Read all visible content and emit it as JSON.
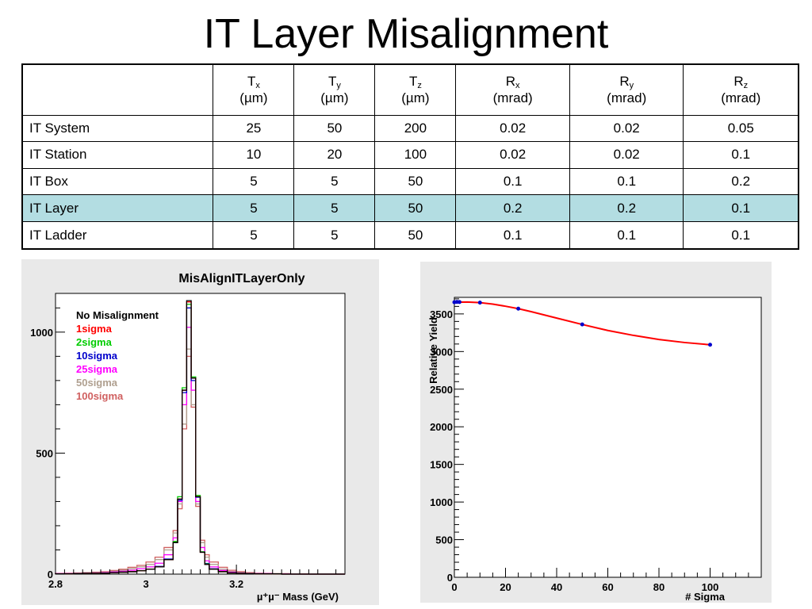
{
  "slide": {
    "title": "IT Layer Misalignment"
  },
  "table": {
    "headers": [
      {
        "sym": "T",
        "sub": "x",
        "unit": "(µm)"
      },
      {
        "sym": "T",
        "sub": "y",
        "unit": "(µm)"
      },
      {
        "sym": "T",
        "sub": "z",
        "unit": "(µm)"
      },
      {
        "sym": "R",
        "sub": "x",
        "unit": "(mrad)"
      },
      {
        "sym": "R",
        "sub": "y",
        "unit": "(mrad)"
      },
      {
        "sym": "R",
        "sub": "z",
        "unit": "(mrad)"
      }
    ],
    "rows": [
      {
        "label": "IT System",
        "values": [
          "25",
          "50",
          "200",
          "0.02",
          "0.02",
          "0.05"
        ]
      },
      {
        "label": "IT Station",
        "values": [
          "10",
          "20",
          "100",
          "0.02",
          "0.02",
          "0.1"
        ]
      },
      {
        "label": "IT Box",
        "values": [
          "5",
          "5",
          "50",
          "0.1",
          "0.1",
          "0.2"
        ]
      },
      {
        "label": "IT Layer",
        "values": [
          "5",
          "5",
          "50",
          "0.2",
          "0.2",
          "0.1"
        ]
      },
      {
        "label": "IT Ladder",
        "values": [
          "5",
          "5",
          "50",
          "0.1",
          "0.1",
          "0.1"
        ]
      }
    ],
    "highlight_color": "#b3dde2"
  },
  "chart_data": [
    {
      "type": "line",
      "title": "MisAlignITLayerOnly",
      "xlabel": "µ⁺µ⁻ Mass (GeV)",
      "ylabel": "",
      "xlim": [
        2.8,
        3.44
      ],
      "ylim": [
        0,
        1160
      ],
      "xticks": [
        "2.8",
        "3",
        "3.2"
      ],
      "yticks": [
        "0",
        "500",
        "1000"
      ],
      "legend_position": "top-left",
      "bin_edges": [
        2.8,
        2.82,
        2.84,
        2.86,
        2.88,
        2.9,
        2.92,
        2.94,
        2.96,
        2.98,
        3.0,
        3.02,
        3.04,
        3.06,
        3.07,
        3.08,
        3.09,
        3.1,
        3.11,
        3.12,
        3.13,
        3.14,
        3.16,
        3.18,
        3.2,
        3.22,
        3.24,
        3.26,
        3.28,
        3.3,
        3.32,
        3.34,
        3.36,
        3.38,
        3.4,
        3.42,
        3.44
      ],
      "series": [
        {
          "name": "No Misalignment",
          "color": "#000000",
          "values": [
            1,
            1,
            2,
            3,
            3,
            4,
            6,
            8,
            10,
            14,
            20,
            30,
            60,
            130,
            310,
            760,
            1130,
            810,
            320,
            90,
            40,
            20,
            10,
            5,
            3,
            2,
            1,
            1,
            1,
            0,
            0,
            0,
            0,
            0,
            0,
            0
          ]
        },
        {
          "name": "1sigma",
          "color": "#ff0000",
          "values": [
            1,
            1,
            2,
            3,
            3,
            4,
            6,
            8,
            10,
            14,
            20,
            30,
            60,
            130,
            310,
            760,
            1125,
            810,
            320,
            90,
            40,
            20,
            10,
            5,
            3,
            2,
            1,
            1,
            1,
            0,
            0,
            0,
            0,
            0,
            0,
            0
          ]
        },
        {
          "name": "2sigma",
          "color": "#00cc00",
          "values": [
            1,
            1,
            2,
            3,
            3,
            4,
            6,
            8,
            10,
            14,
            20,
            30,
            60,
            135,
            320,
            770,
            1115,
            815,
            325,
            92,
            42,
            20,
            10,
            5,
            3,
            2,
            1,
            1,
            1,
            0,
            0,
            0,
            0,
            0,
            0,
            0
          ]
        },
        {
          "name": "10sigma",
          "color": "#0000cc",
          "values": [
            1,
            1,
            2,
            3,
            3,
            4,
            6,
            8,
            10,
            14,
            20,
            32,
            62,
            132,
            305,
            750,
            1100,
            800,
            318,
            92,
            44,
            22,
            11,
            5,
            3,
            2,
            1,
            1,
            1,
            0,
            0,
            0,
            0,
            0,
            0,
            0
          ]
        },
        {
          "name": "25sigma",
          "color": "#ff00ff",
          "values": [
            2,
            2,
            3,
            4,
            5,
            6,
            9,
            12,
            16,
            22,
            30,
            45,
            80,
            150,
            300,
            700,
            1020,
            760,
            300,
            110,
            55,
            30,
            15,
            8,
            5,
            3,
            2,
            2,
            1,
            1,
            0,
            0,
            0,
            0,
            0,
            0
          ]
        },
        {
          "name": "50sigma",
          "color": "#b0a090",
          "values": [
            2,
            3,
            4,
            5,
            6,
            8,
            12,
            16,
            22,
            30,
            40,
            60,
            100,
            170,
            290,
            620,
            930,
            700,
            290,
            130,
            70,
            40,
            20,
            11,
            7,
            4,
            3,
            2,
            2,
            1,
            1,
            0,
            0,
            0,
            0,
            0
          ]
        },
        {
          "name": "100sigma",
          "color": "#d06060",
          "values": [
            3,
            4,
            5,
            6,
            8,
            10,
            15,
            20,
            28,
            36,
            50,
            70,
            110,
            180,
            270,
            600,
            900,
            690,
            280,
            140,
            80,
            50,
            28,
            16,
            10,
            6,
            4,
            3,
            2,
            2,
            1,
            1,
            0,
            0,
            0,
            0
          ]
        }
      ]
    },
    {
      "type": "line",
      "title": "",
      "xlabel": "# Sigma",
      "ylabel": "Relative Yield",
      "xlim": [
        0,
        120
      ],
      "ylim": [
        0,
        3720
      ],
      "xticks": [
        "0",
        "20",
        "40",
        "60",
        "80",
        "100"
      ],
      "yticks": [
        "0",
        "500",
        "1000",
        "1500",
        "2000",
        "2500",
        "3000",
        "3500"
      ],
      "points": {
        "color": "#0000cc",
        "x": [
          0,
          1,
          2,
          10,
          25,
          50,
          100
        ],
        "y": [
          3655,
          3660,
          3658,
          3650,
          3570,
          3360,
          3090
        ]
      },
      "fit": {
        "color": "#ff0000",
        "x": [
          0,
          5,
          10,
          15,
          20,
          25,
          30,
          40,
          50,
          60,
          70,
          80,
          90,
          100
        ],
        "y": [
          3655,
          3658,
          3650,
          3630,
          3602,
          3570,
          3530,
          3445,
          3360,
          3280,
          3215,
          3160,
          3120,
          3090
        ]
      }
    }
  ]
}
